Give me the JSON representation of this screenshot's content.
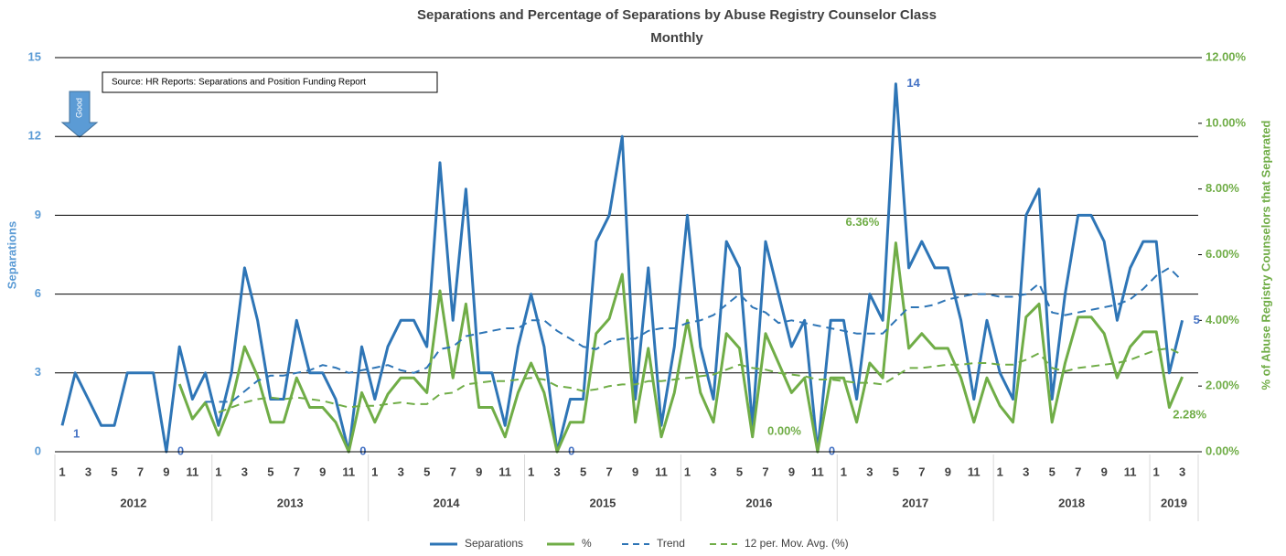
{
  "chart_data": {
    "type": "line",
    "title": "Separations and Percentage of Separations by Abuse Registry Counselor Class",
    "subtitle": "Monthly",
    "y_label": "Separations",
    "y2_label": "% of Abuse Registry Counselors that Separated",
    "annotation": "Source: HR Reports: Separations and Position Funding Report",
    "arrow_label": "Good",
    "categories": [
      "1",
      null,
      "3",
      null,
      "5",
      null,
      "7",
      null,
      "9",
      null,
      "11",
      null,
      "1",
      null,
      "3",
      null,
      "5",
      null,
      "7",
      null,
      "9",
      null,
      "11",
      null,
      "1",
      null,
      "3",
      null,
      "5",
      null,
      "7",
      null,
      "9",
      null,
      "11",
      null,
      "1",
      null,
      "3",
      null,
      "5",
      null,
      "7",
      null,
      "9",
      null,
      "11",
      null,
      "1",
      null,
      "3",
      null,
      "5",
      null,
      "7",
      null,
      "9",
      null,
      "11",
      null,
      "1",
      null,
      "3",
      null,
      "5",
      null,
      "7",
      null,
      "9",
      null,
      "11",
      null,
      "1",
      null,
      "3",
      null,
      "5",
      null,
      "7",
      null,
      "9",
      null,
      "11",
      null,
      "1",
      null,
      "3"
    ],
    "years": [
      "2012",
      "2013",
      "2014",
      "2015",
      "2016",
      "2017",
      "2018",
      "2019"
    ],
    "ylim": [
      0,
      15
    ],
    "yticks": [
      0,
      3,
      6,
      9,
      12,
      15
    ],
    "y2lim": [
      0,
      12
    ],
    "y2ticks": [
      {
        "value": 0,
        "label": "0.00%"
      },
      {
        "value": 2,
        "label": "2.00%"
      },
      {
        "value": 4,
        "label": "4.00%"
      },
      {
        "value": 6,
        "label": "6.00%"
      },
      {
        "value": 8,
        "label": "8.00%"
      },
      {
        "value": 10,
        "label": "10.00%"
      },
      {
        "value": 12,
        "label": "12.00%"
      }
    ],
    "grid": true,
    "legend": "bottom",
    "series": [
      {
        "name": "Separations",
        "color": "#2e75b6",
        "dash": false,
        "values": [
          1,
          3,
          2,
          1,
          1,
          3,
          3,
          3,
          0,
          4,
          2,
          3,
          1,
          3,
          7,
          5,
          2,
          2,
          5,
          3,
          3,
          2,
          0,
          4,
          2,
          4,
          5,
          5,
          4,
          11,
          5,
          10,
          3,
          3,
          1,
          4,
          6,
          4,
          0,
          2,
          2,
          8,
          9,
          12,
          2,
          7,
          1,
          4,
          9,
          4,
          2,
          8,
          7,
          1,
          8,
          6,
          4,
          5,
          0,
          5,
          5,
          2,
          6,
          5,
          14,
          7,
          8,
          7,
          7,
          5,
          2,
          5,
          3,
          2,
          9,
          10,
          2,
          6,
          9,
          9,
          8,
          5,
          7,
          8,
          8,
          3,
          5
        ],
        "value_labels": [
          "1",
          null,
          null,
          null,
          null,
          null,
          null,
          null,
          "0",
          null,
          null,
          null,
          null,
          null,
          null,
          null,
          null,
          null,
          null,
          null,
          null,
          null,
          "0",
          null,
          null,
          null,
          null,
          null,
          null,
          null,
          null,
          null,
          null,
          null,
          null,
          null,
          null,
          null,
          "0",
          null,
          null,
          null,
          null,
          null,
          null,
          null,
          null,
          null,
          null,
          null,
          null,
          null,
          null,
          null,
          null,
          null,
          null,
          null,
          "0",
          null,
          null,
          null,
          null,
          null,
          "14",
          null,
          null,
          null,
          null,
          null,
          null,
          null,
          null,
          null,
          null,
          null,
          null,
          null,
          null,
          null,
          null,
          null,
          null,
          null,
          null,
          null,
          "5"
        ]
      },
      {
        "name": "%",
        "color": "#70ad47",
        "dash": false,
        "axis": "y2",
        "values": [
          null,
          null,
          null,
          null,
          null,
          null,
          null,
          null,
          null,
          2.06,
          1.0,
          1.5,
          0.5,
          1.5,
          3.2,
          2.3,
          0.9,
          0.9,
          2.25,
          1.35,
          1.35,
          0.9,
          0,
          1.8,
          0.9,
          1.75,
          2.25,
          2.25,
          1.8,
          4.9,
          2.25,
          4.5,
          1.35,
          1.35,
          0.45,
          1.8,
          2.7,
          1.8,
          0,
          0.9,
          0.9,
          3.6,
          4.05,
          5.4,
          0.9,
          3.15,
          0.45,
          1.8,
          4.0,
          1.8,
          0.9,
          3.6,
          3.15,
          0.45,
          3.6,
          2.7,
          1.8,
          2.25,
          0,
          2.25,
          2.25,
          0.9,
          2.7,
          2.25,
          6.36,
          3.15,
          3.6,
          3.15,
          3.15,
          2.25,
          0.9,
          2.25,
          1.4,
          0.9,
          4.1,
          4.5,
          0.9,
          2.7,
          4.1,
          4.1,
          3.6,
          2.25,
          3.2,
          3.65,
          3.65,
          1.35,
          2.28
        ],
        "value_labels": [
          null,
          null,
          null,
          null,
          null,
          null,
          null,
          null,
          null,
          null,
          null,
          null,
          null,
          null,
          null,
          null,
          null,
          null,
          null,
          null,
          null,
          null,
          null,
          null,
          null,
          null,
          null,
          null,
          null,
          null,
          null,
          null,
          null,
          null,
          null,
          null,
          null,
          null,
          null,
          null,
          null,
          null,
          null,
          null,
          null,
          null,
          null,
          null,
          null,
          null,
          null,
          null,
          null,
          null,
          null,
          null,
          null,
          null,
          "0.00%",
          null,
          null,
          null,
          null,
          null,
          "6.36%",
          null,
          null,
          null,
          null,
          null,
          null,
          null,
          null,
          null,
          null,
          null,
          null,
          null,
          null,
          null,
          null,
          null,
          null,
          null,
          null,
          null,
          "2.28%"
        ]
      },
      {
        "name": "Trend",
        "color": "#2e75b6",
        "dash": true,
        "values": [
          null,
          null,
          null,
          null,
          null,
          null,
          null,
          null,
          null,
          null,
          null,
          1.9,
          1.9,
          1.9,
          2.3,
          2.7,
          2.9,
          2.9,
          3.0,
          3.1,
          3.3,
          3.2,
          3.0,
          3.1,
          3.2,
          3.3,
          3.1,
          3.0,
          3.2,
          3.9,
          4.0,
          4.4,
          4.5,
          4.6,
          4.7,
          4.7,
          5.0,
          5.0,
          4.6,
          4.3,
          4.0,
          3.9,
          4.2,
          4.3,
          4.3,
          4.6,
          4.7,
          4.7,
          4.9,
          5.0,
          5.2,
          5.6,
          6.0,
          5.5,
          5.3,
          4.9,
          5.0,
          4.9,
          4.8,
          4.7,
          4.6,
          4.5,
          4.5,
          4.5,
          5.0,
          5.5,
          5.5,
          5.6,
          5.8,
          5.9,
          6.0,
          6.0,
          5.9,
          5.9,
          6.0,
          6.4,
          5.3,
          5.2,
          5.3,
          5.4,
          5.5,
          5.6,
          5.8,
          6.2,
          6.7,
          7.0,
          6.5
        ]
      },
      {
        "name": "12 per. Mov. Avg. (%)",
        "color": "#70ad47",
        "dash": true,
        "axis": "y2",
        "values": [
          null,
          null,
          null,
          null,
          null,
          null,
          null,
          null,
          null,
          null,
          null,
          null,
          1.2,
          1.35,
          1.5,
          1.6,
          1.65,
          1.6,
          1.65,
          1.6,
          1.55,
          1.45,
          1.35,
          1.4,
          1.4,
          1.45,
          1.5,
          1.45,
          1.45,
          1.75,
          1.8,
          2.05,
          2.1,
          2.15,
          2.15,
          2.2,
          2.25,
          2.2,
          2.0,
          1.95,
          1.85,
          1.9,
          2.0,
          2.05,
          2.05,
          2.15,
          2.15,
          2.2,
          2.25,
          2.3,
          2.35,
          2.5,
          2.65,
          2.55,
          2.5,
          2.4,
          2.35,
          2.3,
          2.2,
          2.2,
          2.15,
          2.1,
          2.1,
          2.05,
          2.3,
          2.55,
          2.55,
          2.6,
          2.65,
          2.65,
          2.7,
          2.7,
          2.65,
          2.65,
          2.8,
          3.0,
          2.55,
          2.45,
          2.55,
          2.6,
          2.65,
          2.7,
          2.8,
          2.95,
          3.1,
          3.15,
          2.95
        ]
      }
    ]
  }
}
